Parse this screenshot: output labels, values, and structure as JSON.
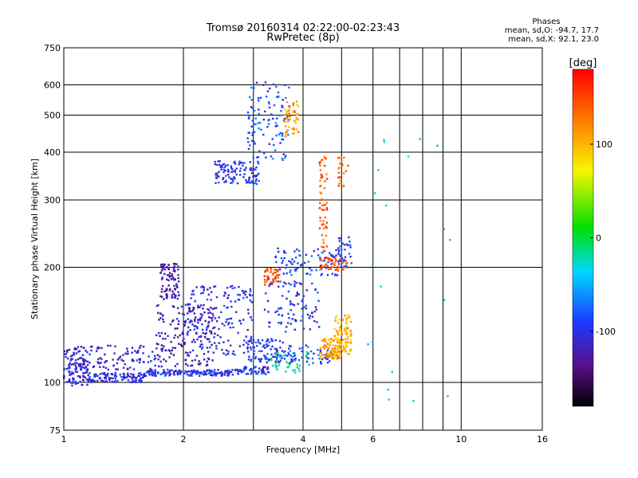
{
  "header": {
    "title_line1": "Tromsø 20160314 02:22:00-02:23:43",
    "title_line2": "RwPretec (8p)"
  },
  "stats": {
    "heading": "Phases",
    "line_o": "mean, sd,O: -94.7, 17.7",
    "line_x": "mean, sd,X:  92.1, 23.0"
  },
  "chart_data": {
    "type": "scatter",
    "xlabel": "Frequency [MHz]",
    "ylabel": "Stationary phase Virtual Height [km]",
    "xscale": "log",
    "yscale": "log",
    "xlim": [
      1,
      16
    ],
    "ylim": [
      75,
      750
    ],
    "x_ticks": [
      1,
      2,
      4,
      6,
      10,
      16
    ],
    "x_tick_labels": [
      "1",
      "2",
      "4",
      "6",
      "10",
      "16"
    ],
    "y_ticks": [
      75,
      100,
      200,
      300,
      400,
      500,
      600,
      750
    ],
    "y_tick_labels": [
      "75",
      "100",
      "200",
      "300",
      "400",
      "500",
      "600",
      "750"
    ],
    "x_gridlines": [
      1,
      2,
      3,
      4,
      5,
      6,
      7,
      8,
      9,
      10,
      16
    ],
    "y_gridlines": [
      100,
      200,
      300,
      400,
      500,
      600
    ],
    "colorbar": {
      "label": "[deg]",
      "range": [
        -180,
        180
      ],
      "ticks": [
        100,
        0,
        -100
      ],
      "tick_labels": [
        "100",
        "0",
        "-100"
      ],
      "colormap": "rainbow"
    },
    "series": [
      {
        "description": "dense traces",
        "clusters": [
          {
            "f": [
              1.0,
              1.15
            ],
            "h": [
              98,
              118
            ],
            "phase": -110,
            "n": 90
          },
          {
            "f": [
              1.15,
              1.6
            ],
            "h": [
              100,
              106
            ],
            "phase": -105,
            "n": 120
          },
          {
            "f": [
              1.6,
              2.7
            ],
            "h": [
              104,
              108
            ],
            "phase": -100,
            "n": 140
          },
          {
            "f": [
              2.7,
              3.3
            ],
            "h": [
              105,
              110
            ],
            "phase": -95,
            "n": 60
          },
          {
            "f": [
              1.0,
              1.7
            ],
            "h": [
              108,
              125
            ],
            "phase": -110,
            "n": 120
          },
          {
            "f": [
              1.7,
              2.4
            ],
            "h": [
              110,
              160
            ],
            "phase": -120,
            "n": 180
          },
          {
            "f": [
              1.75,
              1.95
            ],
            "h": [
              165,
              205
            ],
            "phase": -125,
            "n": 90
          },
          {
            "f": [
              2.0,
              3.0
            ],
            "h": [
              118,
              180
            ],
            "phase": -100,
            "n": 160
          },
          {
            "f": [
              2.9,
              3.6
            ],
            "h": [
              112,
              130
            ],
            "phase": -95,
            "n": 90
          },
          {
            "f": [
              3.3,
              4.2
            ],
            "h": [
              106,
              120
            ],
            "phase": -20,
            "n": 40
          },
          {
            "f": [
              3.6,
              4.8
            ],
            "h": [
              112,
              125
            ],
            "phase": -90,
            "n": 60
          },
          {
            "f": [
              4.4,
              5.0
            ],
            "h": [
              115,
              130
            ],
            "phase": 110,
            "n": 90
          },
          {
            "f": [
              4.8,
              5.3
            ],
            "h": [
              118,
              150
            ],
            "phase": 100,
            "n": 100
          },
          {
            "f": [
              3.4,
              5.0
            ],
            "h": [
              190,
              225
            ],
            "phase": -90,
            "n": 90
          },
          {
            "f": [
              3.2,
              3.5
            ],
            "h": [
              180,
              200
            ],
            "phase": 150,
            "n": 40
          },
          {
            "f": [
              4.4,
              5.2
            ],
            "h": [
              196,
              212
            ],
            "phase": 150,
            "n": 40
          },
          {
            "f": [
              2.4,
              3.1
            ],
            "h": [
              330,
              380
            ],
            "phase": -100,
            "n": 110
          },
          {
            "f": [
              2.9,
              3.7
            ],
            "h": [
              380,
              620
            ],
            "phase": -85,
            "n": 110
          },
          {
            "f": [
              3.6,
              3.9
            ],
            "h": [
              440,
              550
            ],
            "phase": 110,
            "n": 50
          },
          {
            "f": [
              4.4,
              4.6
            ],
            "h": [
              220,
              390
            ],
            "phase": 140,
            "n": 60
          },
          {
            "f": [
              4.9,
              5.2
            ],
            "h": [
              320,
              390
            ],
            "phase": 140,
            "n": 20
          },
          {
            "f": [
              3.2,
              4.4
            ],
            "h": [
              135,
              185
            ],
            "phase": -100,
            "n": 90
          },
          {
            "f": [
              4.9,
              5.3
            ],
            "h": [
              200,
              240
            ],
            "phase": -90,
            "n": 30
          },
          {
            "f": [
              5.8,
              9.5
            ],
            "h": [
              85,
              480
            ],
            "phase": -30,
            "n": 20
          }
        ]
      }
    ]
  }
}
